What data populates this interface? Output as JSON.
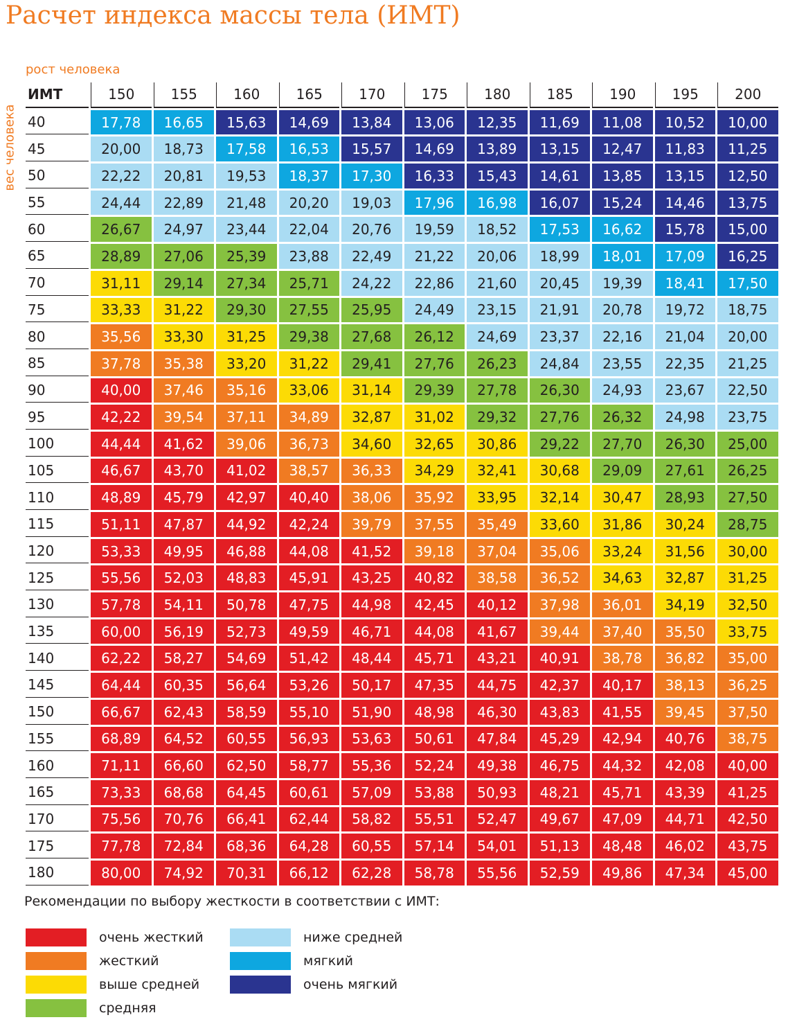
{
  "title": "Расчет индекса массы тела (ИМТ)",
  "chart_data": {
    "type": "table",
    "title": "Расчет индекса массы тела (ИМТ)",
    "xlabel": "рост человека",
    "ylabel": "вес человека",
    "corner_label": "ИМТ",
    "heights": [
      "150",
      "155",
      "160",
      "165",
      "170",
      "175",
      "180",
      "185",
      "190",
      "195",
      "200"
    ],
    "weights": [
      "40",
      "45",
      "50",
      "55",
      "60",
      "65",
      "70",
      "75",
      "80",
      "85",
      "90",
      "95",
      "100",
      "105",
      "110",
      "115",
      "120",
      "125",
      "130",
      "135",
      "140",
      "145",
      "150",
      "155",
      "160",
      "165",
      "170",
      "175",
      "180"
    ],
    "values": [
      [
        "17,78",
        "16,65",
        "15,63",
        "14,69",
        "13,84",
        "13,06",
        "12,35",
        "11,69",
        "11,08",
        "10,52",
        "10,00"
      ],
      [
        "20,00",
        "18,73",
        "17,58",
        "16,53",
        "15,57",
        "14,69",
        "13,89",
        "13,15",
        "12,47",
        "11,83",
        "11,25"
      ],
      [
        "22,22",
        "20,81",
        "19,53",
        "18,37",
        "17,30",
        "16,33",
        "15,43",
        "14,61",
        "13,85",
        "13,15",
        "12,50"
      ],
      [
        "24,44",
        "22,89",
        "21,48",
        "20,20",
        "19,03",
        "17,96",
        "16,98",
        "16,07",
        "15,24",
        "14,46",
        "13,75"
      ],
      [
        "26,67",
        "24,97",
        "23,44",
        "22,04",
        "20,76",
        "19,59",
        "18,52",
        "17,53",
        "16,62",
        "15,78",
        "15,00"
      ],
      [
        "28,89",
        "27,06",
        "25,39",
        "23,88",
        "22,49",
        "21,22",
        "20,06",
        "18,99",
        "18,01",
        "17,09",
        "16,25"
      ],
      [
        "31,11",
        "29,14",
        "27,34",
        "25,71",
        "24,22",
        "22,86",
        "21,60",
        "20,45",
        "19,39",
        "18,41",
        "17,50"
      ],
      [
        "33,33",
        "31,22",
        "29,30",
        "27,55",
        "25,95",
        "24,49",
        "23,15",
        "21,91",
        "20,78",
        "19,72",
        "18,75"
      ],
      [
        "35,56",
        "33,30",
        "31,25",
        "29,38",
        "27,68",
        "26,12",
        "24,69",
        "23,37",
        "22,16",
        "21,04",
        "20,00"
      ],
      [
        "37,78",
        "35,38",
        "33,20",
        "31,22",
        "29,41",
        "27,76",
        "26,23",
        "24,84",
        "23,55",
        "22,35",
        "21,25"
      ],
      [
        "40,00",
        "37,46",
        "35,16",
        "33,06",
        "31,14",
        "29,39",
        "27,78",
        "26,30",
        "24,93",
        "23,67",
        "22,50"
      ],
      [
        "42,22",
        "39,54",
        "37,11",
        "34,89",
        "32,87",
        "31,02",
        "29,32",
        "27,76",
        "26,32",
        "24,98",
        "23,75"
      ],
      [
        "44,44",
        "41,62",
        "39,06",
        "36,73",
        "34,60",
        "32,65",
        "30,86",
        "29,22",
        "27,70",
        "26,30",
        "25,00"
      ],
      [
        "46,67",
        "43,70",
        "41,02",
        "38,57",
        "36,33",
        "34,29",
        "32,41",
        "30,68",
        "29,09",
        "27,61",
        "26,25"
      ],
      [
        "48,89",
        "45,79",
        "42,97",
        "40,40",
        "38,06",
        "35,92",
        "33,95",
        "32,14",
        "30,47",
        "28,93",
        "27,50"
      ],
      [
        "51,11",
        "47,87",
        "44,92",
        "42,24",
        "39,79",
        "37,55",
        "35,49",
        "33,60",
        "31,86",
        "30,24",
        "28,75"
      ],
      [
        "53,33",
        "49,95",
        "46,88",
        "44,08",
        "41,52",
        "39,18",
        "37,04",
        "35,06",
        "33,24",
        "31,56",
        "30,00"
      ],
      [
        "55,56",
        "52,03",
        "48,83",
        "45,91",
        "43,25",
        "40,82",
        "38,58",
        "36,52",
        "34,63",
        "32,87",
        "31,25"
      ],
      [
        "57,78",
        "54,11",
        "50,78",
        "47,75",
        "44,98",
        "42,45",
        "40,12",
        "37,98",
        "36,01",
        "34,19",
        "32,50"
      ],
      [
        "60,00",
        "56,19",
        "52,73",
        "49,59",
        "46,71",
        "44,08",
        "41,67",
        "39,44",
        "37,40",
        "35,50",
        "33,75"
      ],
      [
        "62,22",
        "58,27",
        "54,69",
        "51,42",
        "48,44",
        "45,71",
        "43,21",
        "40,91",
        "38,78",
        "36,82",
        "35,00"
      ],
      [
        "64,44",
        "60,35",
        "56,64",
        "53,26",
        "50,17",
        "47,35",
        "44,75",
        "42,37",
        "40,17",
        "38,13",
        "36,25"
      ],
      [
        "66,67",
        "62,43",
        "58,59",
        "55,10",
        "51,90",
        "48,98",
        "46,30",
        "43,83",
        "41,55",
        "39,45",
        "37,50"
      ],
      [
        "68,89",
        "64,52",
        "60,55",
        "56,93",
        "53,63",
        "50,61",
        "47,84",
        "45,29",
        "42,94",
        "40,76",
        "38,75"
      ],
      [
        "71,11",
        "66,60",
        "62,50",
        "58,77",
        "55,36",
        "52,24",
        "49,38",
        "46,75",
        "44,32",
        "42,08",
        "40,00"
      ],
      [
        "73,33",
        "68,68",
        "64,45",
        "60,61",
        "57,09",
        "53,88",
        "50,93",
        "48,21",
        "45,71",
        "43,39",
        "41,25"
      ],
      [
        "75,56",
        "70,76",
        "66,41",
        "62,44",
        "58,82",
        "55,51",
        "52,47",
        "49,67",
        "47,09",
        "44,71",
        "42,50"
      ],
      [
        "77,78",
        "72,84",
        "68,36",
        "64,28",
        "60,55",
        "57,14",
        "54,01",
        "51,13",
        "48,48",
        "46,02",
        "43,75"
      ],
      [
        "80,00",
        "74,92",
        "70,31",
        "66,12",
        "62,28",
        "58,78",
        "55,56",
        "52,59",
        "49,86",
        "47,34",
        "45,00"
      ]
    ],
    "categories": [
      [
        "s",
        "s",
        "vs",
        "vs",
        "vs",
        "vs",
        "vs",
        "vs",
        "vs",
        "vs",
        "vs"
      ],
      [
        "bm",
        "bm",
        "s",
        "s",
        "vs",
        "vs",
        "vs",
        "vs",
        "vs",
        "vs",
        "vs"
      ],
      [
        "bm",
        "bm",
        "bm",
        "s",
        "s",
        "vs",
        "vs",
        "vs",
        "vs",
        "vs",
        "vs"
      ],
      [
        "bm",
        "bm",
        "bm",
        "bm",
        "bm",
        "s",
        "s",
        "vs",
        "vs",
        "vs",
        "vs"
      ],
      [
        "m",
        "bm",
        "bm",
        "bm",
        "bm",
        "bm",
        "bm",
        "s",
        "s",
        "vs",
        "vs"
      ],
      [
        "m",
        "m",
        "m",
        "bm",
        "bm",
        "bm",
        "bm",
        "bm",
        "s",
        "s",
        "vs"
      ],
      [
        "am",
        "m",
        "m",
        "m",
        "bm",
        "bm",
        "bm",
        "bm",
        "bm",
        "s",
        "s"
      ],
      [
        "am",
        "am",
        "m",
        "m",
        "m",
        "bm",
        "bm",
        "bm",
        "bm",
        "bm",
        "bm"
      ],
      [
        "h",
        "am",
        "am",
        "m",
        "m",
        "m",
        "bm",
        "bm",
        "bm",
        "bm",
        "bm"
      ],
      [
        "h",
        "h",
        "am",
        "am",
        "m",
        "m",
        "m",
        "bm",
        "bm",
        "bm",
        "bm"
      ],
      [
        "vh",
        "h",
        "h",
        "am",
        "am",
        "m",
        "m",
        "m",
        "bm",
        "bm",
        "bm"
      ],
      [
        "vh",
        "h",
        "h",
        "h",
        "am",
        "am",
        "m",
        "m",
        "m",
        "bm",
        "bm"
      ],
      [
        "vh",
        "vh",
        "h",
        "h",
        "am",
        "am",
        "am",
        "m",
        "m",
        "m",
        "m"
      ],
      [
        "vh",
        "vh",
        "vh",
        "h",
        "h",
        "am",
        "am",
        "am",
        "m",
        "m",
        "m"
      ],
      [
        "vh",
        "vh",
        "vh",
        "vh",
        "h",
        "h",
        "am",
        "am",
        "am",
        "m",
        "m"
      ],
      [
        "vh",
        "vh",
        "vh",
        "vh",
        "h",
        "h",
        "h",
        "am",
        "am",
        "am",
        "m"
      ],
      [
        "vh",
        "vh",
        "vh",
        "vh",
        "vh",
        "h",
        "h",
        "h",
        "am",
        "am",
        "am"
      ],
      [
        "vh",
        "vh",
        "vh",
        "vh",
        "vh",
        "vh",
        "h",
        "h",
        "am",
        "am",
        "am"
      ],
      [
        "vh",
        "vh",
        "vh",
        "vh",
        "vh",
        "vh",
        "vh",
        "h",
        "h",
        "am",
        "am"
      ],
      [
        "vh",
        "vh",
        "vh",
        "vh",
        "vh",
        "vh",
        "vh",
        "h",
        "h",
        "h",
        "am"
      ],
      [
        "vh",
        "vh",
        "vh",
        "vh",
        "vh",
        "vh",
        "vh",
        "vh",
        "h",
        "h",
        "h"
      ],
      [
        "vh",
        "vh",
        "vh",
        "vh",
        "vh",
        "vh",
        "vh",
        "vh",
        "vh",
        "h",
        "h"
      ],
      [
        "vh",
        "vh",
        "vh",
        "vh",
        "vh",
        "vh",
        "vh",
        "vh",
        "vh",
        "h",
        "h"
      ],
      [
        "vh",
        "vh",
        "vh",
        "vh",
        "vh",
        "vh",
        "vh",
        "vh",
        "vh",
        "vh",
        "h"
      ],
      [
        "vh",
        "vh",
        "vh",
        "vh",
        "vh",
        "vh",
        "vh",
        "vh",
        "vh",
        "vh",
        "vh"
      ],
      [
        "vh",
        "vh",
        "vh",
        "vh",
        "vh",
        "vh",
        "vh",
        "vh",
        "vh",
        "vh",
        "vh"
      ],
      [
        "vh",
        "vh",
        "vh",
        "vh",
        "vh",
        "vh",
        "vh",
        "vh",
        "vh",
        "vh",
        "vh"
      ],
      [
        "vh",
        "vh",
        "vh",
        "vh",
        "vh",
        "vh",
        "vh",
        "vh",
        "vh",
        "vh",
        "vh"
      ],
      [
        "vh",
        "vh",
        "vh",
        "vh",
        "vh",
        "vh",
        "vh",
        "vh",
        "vh",
        "vh",
        "vh"
      ]
    ],
    "colors": {
      "vh": "#e31e24",
      "h": "#f07b22",
      "am": "#fcdb05",
      "m": "#86c140",
      "bm": "#aadcf3",
      "s": "#0ea7e0",
      "vs": "#2a3490"
    }
  },
  "legend": {
    "title": "Рекомендации по выбору жесткости в соответствии с ИМТ:",
    "items": [
      {
        "key": "vh",
        "label": "очень жесткий",
        "color": "#e31e24"
      },
      {
        "key": "h",
        "label": "жесткий",
        "color": "#f07b22"
      },
      {
        "key": "am",
        "label": "выше средней",
        "color": "#fcdb05"
      },
      {
        "key": "m",
        "label": "средняя",
        "color": "#86c140"
      },
      {
        "key": "bm",
        "label": "ниже средней",
        "color": "#aadcf3"
      },
      {
        "key": "s",
        "label": "мягкий",
        "color": "#0ea7e0"
      },
      {
        "key": "vs",
        "label": "очень мягкий",
        "color": "#2a3490"
      }
    ]
  },
  "accent_color": "#f07b22"
}
